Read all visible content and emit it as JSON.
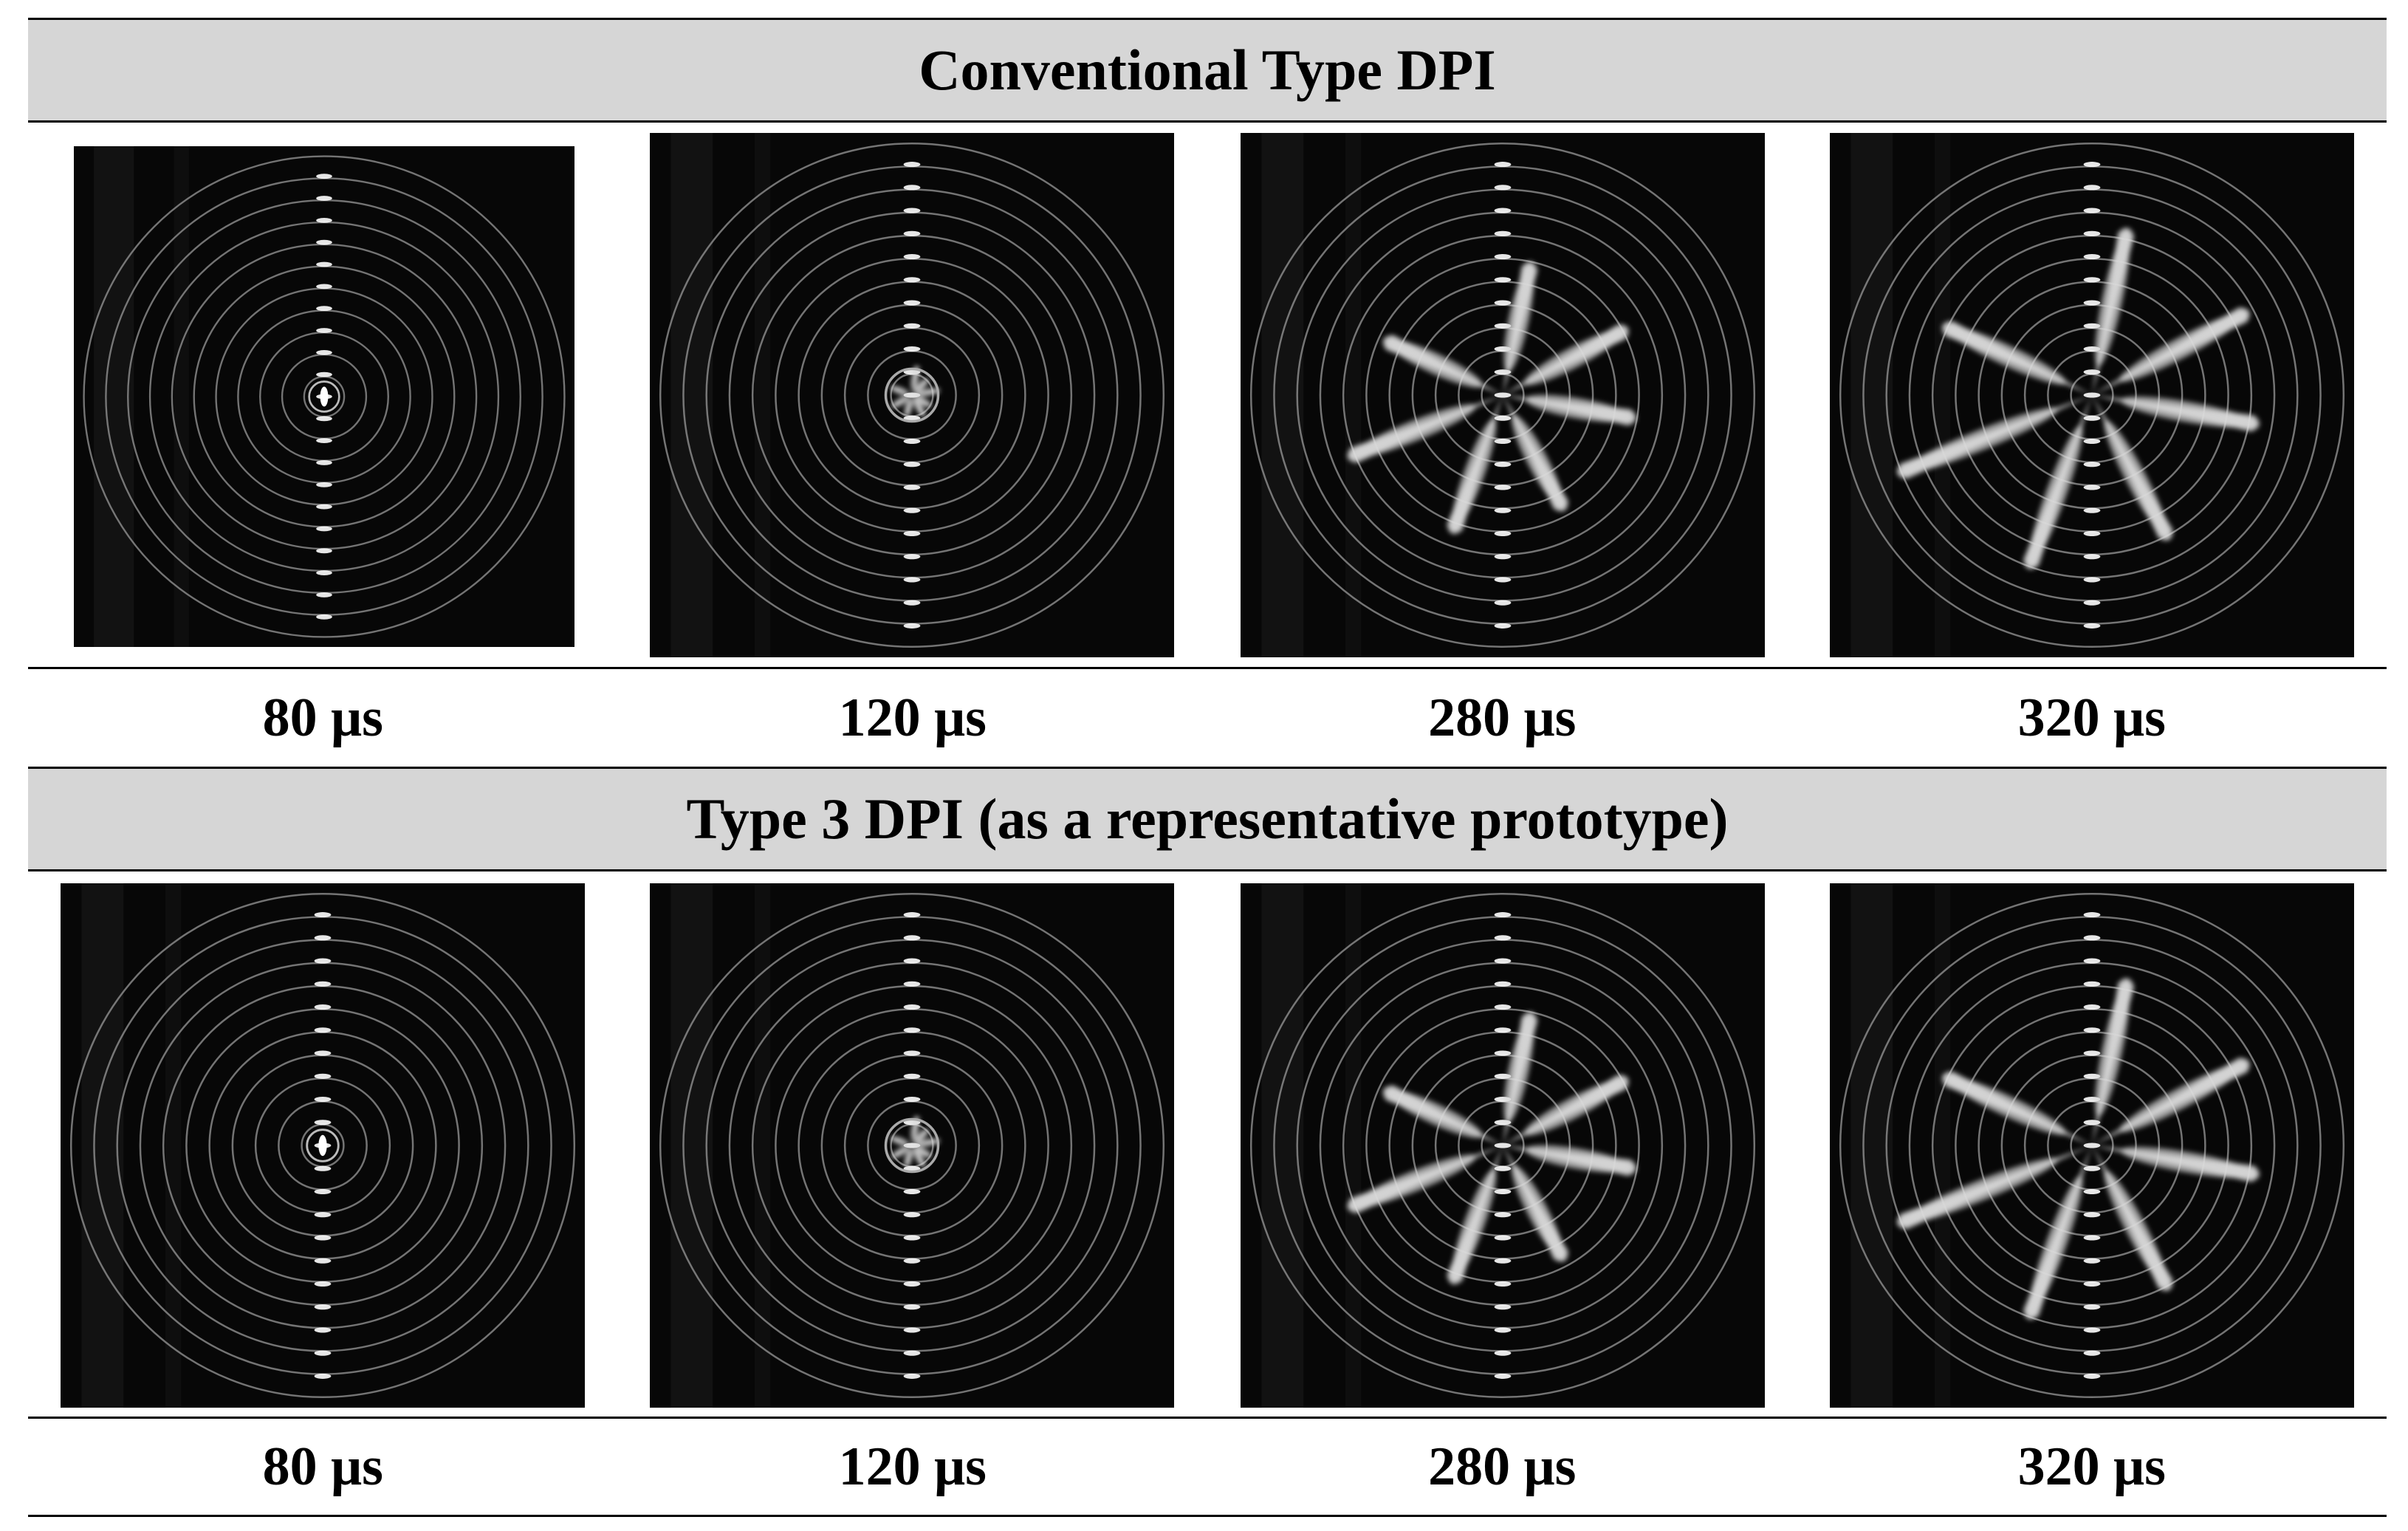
{
  "rows": [
    {
      "title": "Conventional Type DPI",
      "panels": [
        {
          "time": "80 μs",
          "stage": 0
        },
        {
          "time": "120 μs",
          "stage": 1
        },
        {
          "time": "280 μs",
          "stage": 2
        },
        {
          "time": "320 μs",
          "stage": 3
        }
      ]
    },
    {
      "title": "Type 3 DPI (as a representative prototype)",
      "panels": [
        {
          "time": "80 μs",
          "stage": 0
        },
        {
          "time": "120 μs",
          "stage": 1
        },
        {
          "time": "280 μs",
          "stage": 2
        },
        {
          "time": "320 μs",
          "stage": 3
        }
      ]
    }
  ]
}
